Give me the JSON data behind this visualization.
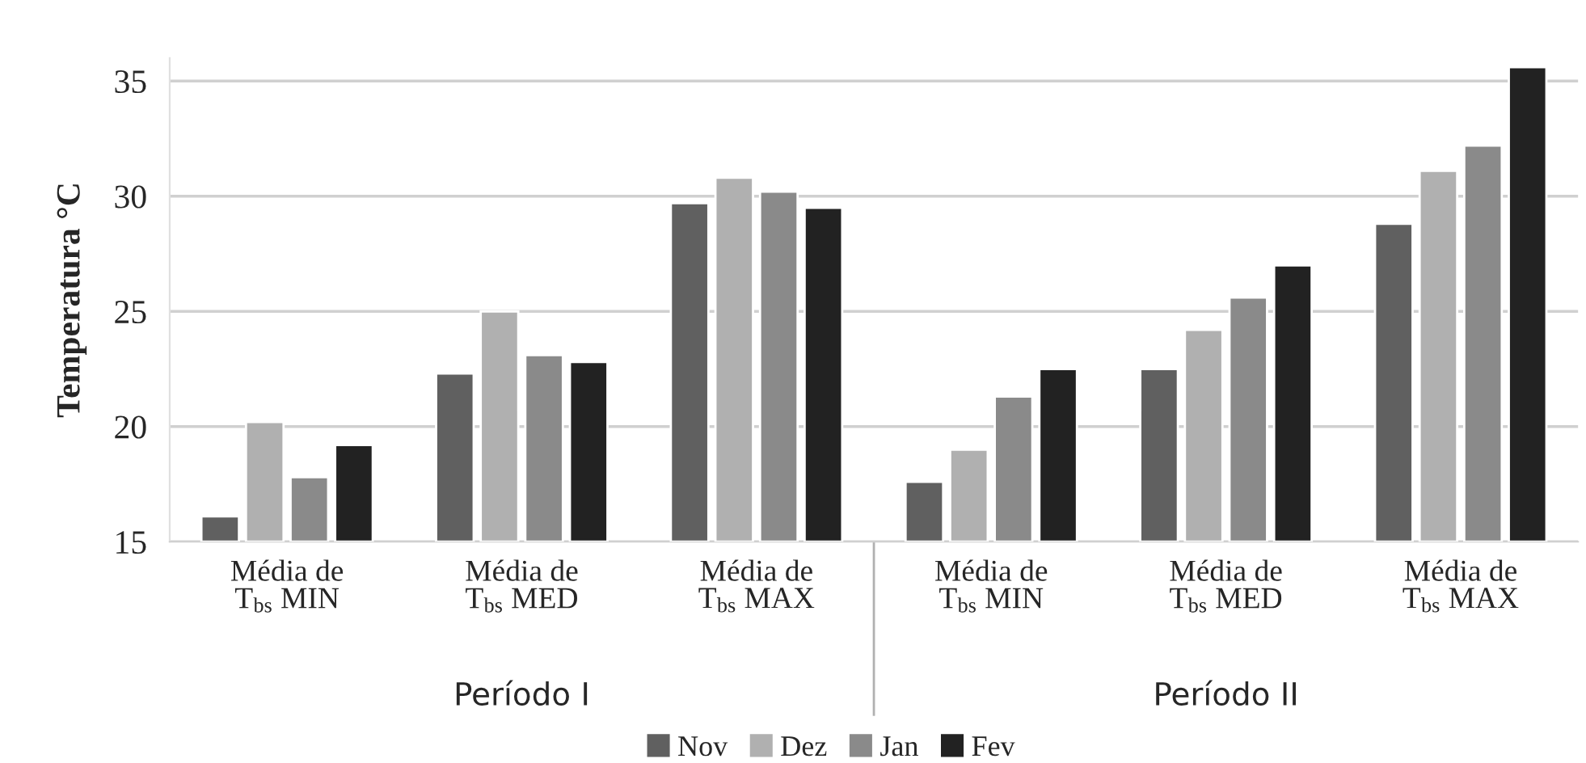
{
  "chart_data": {
    "type": "bar",
    "ylabel": "Temperatura °C",
    "categories": [
      "Média de\nT$_{bs}$ MIN",
      "Média de\nT$_{bs}$ MED",
      "Média de\nT$_{bs}$ MAX",
      "Média de\nT$_{bs}$ MIN",
      "Média de\nT$_{bs}$ MED",
      "Média de\nT$_{bs}$ MAX"
    ],
    "series": [
      {
        "name": "Nov",
        "color": "#606060",
        "values": [
          16.1,
          22.3,
          29.7,
          17.6,
          22.5,
          28.8
        ]
      },
      {
        "name": "Dez",
        "color": "#b0b0b0",
        "values": [
          20.2,
          25.0,
          30.8,
          19.0,
          24.2,
          31.1
        ]
      },
      {
        "name": "Jan",
        "color": "#8a8a8a",
        "values": [
          17.8,
          23.1,
          30.2,
          21.3,
          25.6,
          32.2
        ]
      },
      {
        "name": "Fev",
        "color": "#222222",
        "values": [
          19.2,
          22.8,
          29.5,
          22.5,
          27.0,
          35.6
        ]
      }
    ],
    "annotations": [
      "Período I",
      "Período II"
    ],
    "ylim": [
      15,
      36
    ],
    "yticks": [
      15,
      20,
      25,
      30,
      35
    ],
    "grid": "y",
    "legend": "bottom"
  }
}
